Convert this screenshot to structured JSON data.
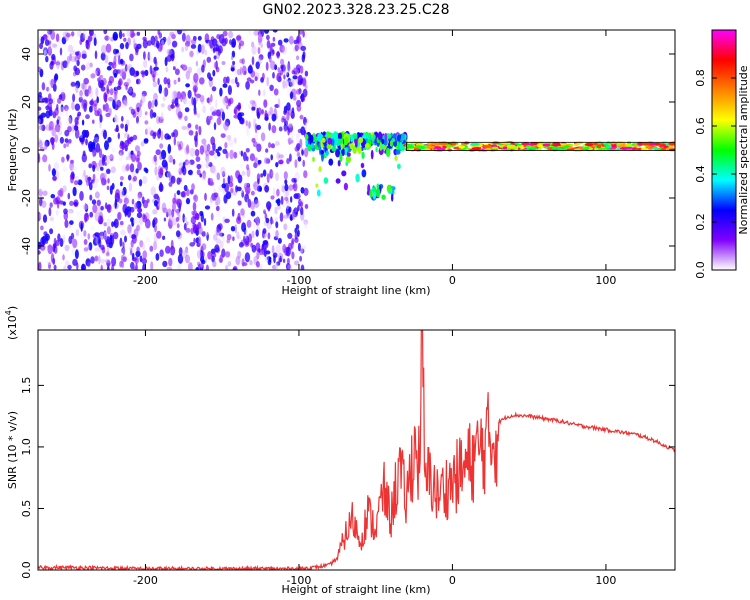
{
  "figure_title": "GN02.2023.328.23.25.C28",
  "chart_data": [
    {
      "type": "heatmap",
      "title": "GN02.2023.328.23.25.C28",
      "xlabel": "Height of straight line (km)",
      "ylabel": "Frequency (Hz)",
      "xlim": [
        -270,
        145
      ],
      "ylim": [
        -50,
        50
      ],
      "x_ticks": [
        -200,
        -100,
        0,
        100
      ],
      "y_ticks": [
        -40,
        -20,
        0,
        20,
        40
      ],
      "colorbar": {
        "label": "Normalized spectral amplitude",
        "range": [
          0.0,
          1.0
        ],
        "ticks": [
          0.0,
          0.2,
          0.4,
          0.6,
          0.8
        ],
        "colormap": [
          "#ffffff",
          "#8000ff",
          "#0000ff",
          "#00ffff",
          "#00ff00",
          "#ffff00",
          "#ff8000",
          "#ff0000",
          "#ff00ff"
        ]
      },
      "regions": [
        {
          "x_range": [
            -270,
            -95
          ],
          "freq_range": [
            -50,
            50
          ],
          "amplitude_range": [
            0.0,
            0.25
          ],
          "description": "broadband noise"
        },
        {
          "x_range": [
            -95,
            -30
          ],
          "freq_range": [
            -20,
            8
          ],
          "amplitude_range": [
            0.1,
            0.6
          ]
        },
        {
          "x_range": [
            -30,
            145
          ],
          "freq_range": [
            0,
            3
          ],
          "amplitude_range": [
            0.4,
            1.0
          ]
        }
      ]
    },
    {
      "type": "line",
      "xlabel": "Height of straight line (km)",
      "ylabel": "SNR (10 * v/v)",
      "y_multiplier_label": "(x10",
      "y_multiplier_exp": "4",
      "xlim": [
        -270,
        145
      ],
      "ylim": [
        0,
        1.95
      ],
      "x_ticks": [
        -200,
        -100,
        0,
        100
      ],
      "y_ticks": [
        0.0,
        0.5,
        1.0,
        1.5
      ],
      "color": "#ee3333",
      "series": [
        {
          "x": [
            -270,
            -250,
            -200,
            -150,
            -100,
            -90,
            -80,
            -75,
            -70,
            -65,
            -60,
            -55,
            -50,
            -45,
            -40,
            -35,
            -30,
            -25,
            -22,
            -20,
            -19,
            -18,
            -16,
            -14,
            -10,
            -5,
            0,
            5,
            10,
            15,
            20,
            25,
            30,
            35,
            40,
            50,
            60,
            70,
            80,
            90,
            100,
            110,
            120,
            130,
            140,
            145
          ],
          "y": [
            0.02,
            0.02,
            0.01,
            0.01,
            0.01,
            0.02,
            0.04,
            0.1,
            0.3,
            0.45,
            0.25,
            0.5,
            0.35,
            0.7,
            0.45,
            0.9,
            0.6,
            1.1,
            0.9,
            1.95,
            1.55,
            0.75,
            0.8,
            0.82,
            0.65,
            0.72,
            0.78,
            0.85,
            0.92,
            1.0,
            1.08,
            1.15,
            1.2,
            1.24,
            1.26,
            1.25,
            1.23,
            1.21,
            1.18,
            1.16,
            1.14,
            1.12,
            1.1,
            1.06,
            1.0,
            0.97
          ]
        }
      ]
    }
  ]
}
